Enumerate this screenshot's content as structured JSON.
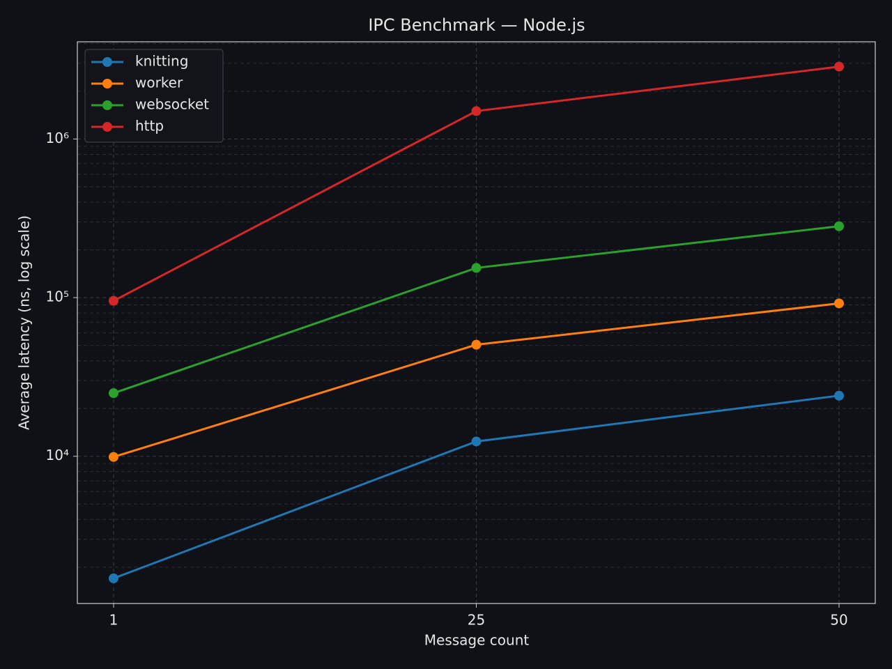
{
  "chart_data": {
    "type": "line",
    "title": "IPC Benchmark — Node.js",
    "x_label": "Message count",
    "y_label": "Average latency (ns, log scale)",
    "categories": [
      "1",
      "25",
      "50"
    ],
    "series": [
      {
        "name": "knitting",
        "color": "#1f77b4",
        "values": [
          1700,
          12400,
          24100
        ]
      },
      {
        "name": "worker",
        "color": "#ff7f0e",
        "values": [
          9900,
          50500,
          92000
        ]
      },
      {
        "name": "websocket",
        "color": "#2ca02c",
        "values": [
          25000,
          154000,
          282000
        ]
      },
      {
        "name": "http",
        "color": "#d62728",
        "values": [
          95500,
          1500000,
          2860000
        ]
      }
    ],
    "ylim": [
      1180,
      4100000
    ],
    "y_log": true,
    "yticks": [
      {
        "value": 10000,
        "label": "10⁴"
      },
      {
        "value": 100000,
        "label": "10⁵"
      },
      {
        "value": 1000000,
        "label": "10⁶"
      }
    ],
    "yticks_minor": [
      2000,
      3000,
      4000,
      5000,
      6000,
      7000,
      8000,
      9000,
      20000,
      30000,
      40000,
      50000,
      60000,
      70000,
      80000,
      90000,
      200000,
      300000,
      400000,
      500000,
      600000,
      700000,
      800000,
      900000,
      2000000,
      3000000,
      4000000
    ],
    "grid": true,
    "legend": "upper left"
  }
}
